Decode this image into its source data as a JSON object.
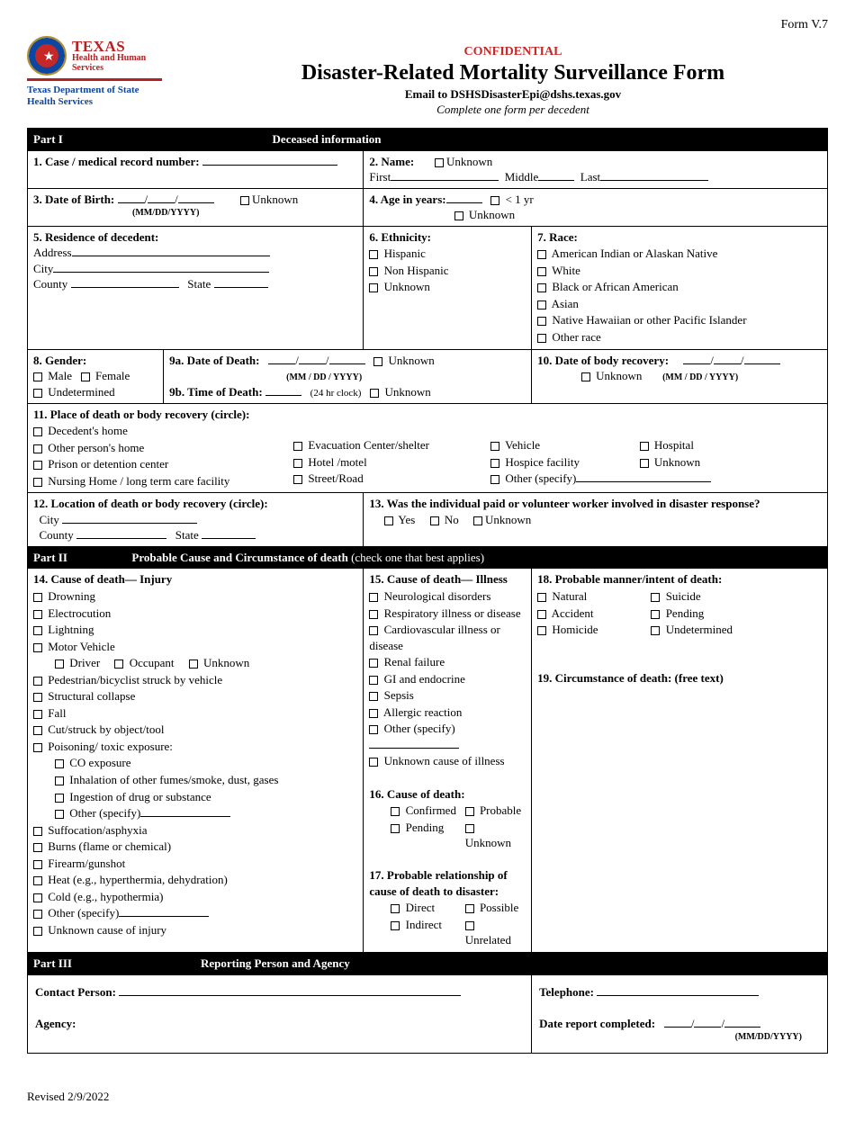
{
  "form_version": "Form V.7",
  "header": {
    "texas": "TEXAS",
    "hhs": "Health and Human\nServices",
    "dept1": "Texas Department of State",
    "dept2": "Health Services",
    "confidential": "CONFIDENTIAL",
    "title": "Disaster-Related Mortality Surveillance Form",
    "email_line": "Email to DSHSDisasterEpi@dshs.texas.gov",
    "instruction": "Complete one form per decedent"
  },
  "part1": {
    "part": "Part I",
    "title": "Deceased information",
    "q1": "1. Case / medical record number:",
    "q2": {
      "label": "2. Name:",
      "unknown": "Unknown",
      "first": "First",
      "middle": "Middle",
      "last": "Last"
    },
    "q3": {
      "label": "3. Date of Birth:",
      "fmt": "(MM/DD/YYYY)",
      "unknown": "Unknown"
    },
    "q4": {
      "label": "4. Age in years:",
      "lt1": "< 1 yr",
      "unknown": "Unknown"
    },
    "q5": {
      "label": "5. Residence of decedent:",
      "address": "Address",
      "city": "City",
      "county": "County",
      "state": "State"
    },
    "q6": {
      "label": "6. Ethnicity:",
      "opts": [
        "Hispanic",
        "Non Hispanic",
        "Unknown"
      ]
    },
    "q7": {
      "label": "7. Race:",
      "opts": [
        "American Indian or Alaskan Native",
        "White",
        "Black or African American",
        "Asian",
        "Native Hawaiian or other Pacific Islander",
        "Other race"
      ]
    },
    "q8": {
      "label": "8. Gender:",
      "opts": [
        "Male",
        "Female",
        "Undetermined"
      ]
    },
    "q9a": {
      "label": "9a. Date of Death:",
      "fmt": "(MM / DD / YYYY)",
      "unknown": "Unknown"
    },
    "q9b": {
      "label": "9b. Time of Death:",
      "note": "(24 hr clock)",
      "unknown": "Unknown"
    },
    "q10": {
      "label": "10. Date of body recovery:",
      "unknown": "Unknown",
      "fmt": "(MM / DD / YYYY)"
    },
    "q11": {
      "label": "11. Place of death or body recovery (circle):",
      "col1": [
        "Decedent's home",
        "Other person's home",
        "Prison or detention center",
        "Nursing Home / long term care facility"
      ],
      "col2": [
        "Evacuation Center/shelter",
        "Hotel /motel",
        "Street/Road"
      ],
      "col3a": [
        "Vehicle",
        "Hospice facility"
      ],
      "col3b": [
        "Hospital",
        "Unknown"
      ],
      "other": "Other (specify)"
    },
    "q12": {
      "label": "12. Location of death or body recovery (circle):",
      "city": "City",
      "county": "County",
      "state": "State"
    },
    "q13": {
      "label": "13. Was the individual paid or volunteer worker involved in disaster response?",
      "opts": [
        "Yes",
        "No",
        "Unknown"
      ]
    }
  },
  "part2": {
    "part": "Part II",
    "title_a": "Probable Cause and Circumstance of death",
    "title_b": " (check one that best applies)",
    "q14": {
      "label": "14.  Cause of death— Injury",
      "opts": [
        "Drowning",
        "Electrocution",
        "Lightning",
        "Motor Vehicle"
      ],
      "mv_sub": [
        "Driver",
        "Occupant",
        "Unknown"
      ],
      "opts2": [
        "Pedestrian/bicyclist struck by vehicle",
        "Structural collapse",
        "Fall",
        "Cut/struck by object/tool",
        "Poisoning/ toxic exposure:"
      ],
      "poison_sub": [
        "CO exposure",
        "Inhalation of other fumes/smoke, dust, gases",
        "Ingestion of drug or substance",
        "Other (specify)"
      ],
      "opts3": [
        "Suffocation/asphyxia",
        "Burns (flame or chemical)",
        "Firearm/gunshot",
        "Heat  (e.g., hyperthermia, dehydration)",
        "Cold (e.g., hypothermia)",
        "Other (specify)",
        "Unknown cause of injury"
      ]
    },
    "q15": {
      "label": "15.  Cause of death— Illness",
      "opts": [
        "Neurological disorders",
        "Respiratory illness or disease",
        "Cardiovascular illness or disease",
        "Renal failure",
        "GI and endocrine",
        "Sepsis",
        "Allergic reaction",
        "Other (specify)",
        "Unknown cause of illness"
      ]
    },
    "q16": {
      "label": "16.  Cause of death:",
      "opts_l": [
        "Confirmed",
        "Pending"
      ],
      "opts_r": [
        "Probable",
        "Unknown"
      ]
    },
    "q17": {
      "label1": "17. Probable relationship of",
      "label2": "cause of death to disaster:",
      "opts_l": [
        "Direct",
        "Indirect"
      ],
      "opts_r": [
        "Possible",
        "Unrelated"
      ]
    },
    "q18": {
      "label": "18. Probable manner/intent of death:",
      "opts_l": [
        "Natural",
        "Accident",
        "Homicide"
      ],
      "opts_r": [
        "Suicide",
        "Pending",
        "Undetermined"
      ]
    },
    "q19": {
      "label": "19. Circumstance of death: (free text)"
    }
  },
  "part3": {
    "part": "Part III",
    "title": "Reporting Person and Agency",
    "contact": "Contact Person:",
    "agency": "Agency:",
    "telephone": "Telephone:",
    "date_completed": "Date report completed:",
    "fmt": "(MM/DD/YYYY)"
  },
  "revised": "Revised 2/9/2022"
}
